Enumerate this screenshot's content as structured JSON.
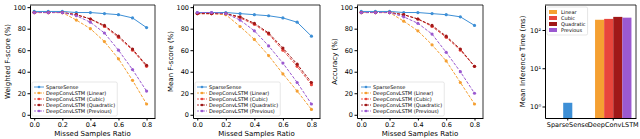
{
  "chart_data": [
    {
      "type": "line",
      "y_label": "Weighted F-score (%)",
      "x_label": "Missed Samples Ratio",
      "x": [
        0,
        0.1,
        0.2,
        0.3,
        0.4,
        0.5,
        0.6,
        0.7,
        0.8
      ],
      "xlim": [
        -0.03,
        0.86
      ],
      "xticks": [
        {
          "value": 0,
          "label": "0.0"
        },
        0.2,
        0.4,
        0.6,
        0.8
      ],
      "ylim": [
        -3,
        102
      ],
      "yticks": [
        0,
        20,
        40,
        60,
        80,
        100
      ],
      "legend": "lower left",
      "series": [
        {
          "name": "SparseSense",
          "color": "#3d8fd6",
          "marker": "circle",
          "line_style": "solid",
          "values": [
            96,
            96,
            96,
            95,
            95,
            94,
            93,
            90,
            81
          ]
        },
        {
          "name": "DeepConvLSTM (Linear)",
          "color": "#f5a032",
          "marker": "circle",
          "line_style": "dashed",
          "values": [
            95,
            95,
            95,
            88,
            80,
            68,
            52,
            32,
            10
          ]
        },
        {
          "name": "DeepConvLSTM (Cubic)",
          "color": "#e8453c",
          "marker": "circle",
          "line_style": "dashed",
          "values": [
            95,
            95,
            95,
            93,
            89,
            82,
            72,
            60,
            45
          ]
        },
        {
          "name": "DeepConvLSTM (Quadratic)",
          "color": "#a01818",
          "marker": "circle",
          "line_style": "dashed",
          "values": [
            95,
            95,
            95,
            93,
            89,
            83,
            73,
            61,
            46
          ]
        },
        {
          "name": "DeepConvLSTM (Previous)",
          "color": "#9b59d0",
          "marker": "circle",
          "line_style": "dashed",
          "values": [
            95,
            95,
            95,
            92,
            86,
            76,
            60,
            42,
            22
          ]
        }
      ]
    },
    {
      "type": "line",
      "y_label": "Mean F-score (%)",
      "x_label": "Missed Samples Ratio",
      "x": [
        0,
        0.1,
        0.2,
        0.3,
        0.4,
        0.5,
        0.6,
        0.7,
        0.8
      ],
      "xlim": [
        -0.03,
        0.86
      ],
      "xticks": [
        {
          "value": 0,
          "label": "0.0"
        },
        0.2,
        0.4,
        0.6,
        0.8
      ],
      "ylim": [
        -3,
        102
      ],
      "yticks": [
        0,
        20,
        40,
        60,
        80,
        100
      ],
      "legend": "lower left",
      "series": [
        {
          "name": "SparseSense",
          "color": "#3d8fd6",
          "marker": "circle",
          "line_style": "solid",
          "values": [
            95,
            95,
            95,
            94,
            93,
            92,
            90,
            86,
            73
          ]
        },
        {
          "name": "DeepConvLSTM (Linear)",
          "color": "#f5a032",
          "marker": "circle",
          "line_style": "dashed",
          "values": [
            94,
            94,
            93,
            82,
            70,
            55,
            38,
            22,
            5
          ]
        },
        {
          "name": "DeepConvLSTM (Cubic)",
          "color": "#e8453c",
          "marker": "circle",
          "line_style": "dashed",
          "values": [
            94,
            94,
            94,
            90,
            84,
            75,
            60,
            45,
            28
          ]
        },
        {
          "name": "DeepConvLSTM (Quadratic)",
          "color": "#a01818",
          "marker": "circle",
          "line_style": "dashed",
          "values": [
            94,
            94,
            94,
            91,
            85,
            76,
            62,
            47,
            30
          ]
        },
        {
          "name": "DeepConvLSTM (Previous)",
          "color": "#9b59d0",
          "marker": "circle",
          "line_style": "dashed",
          "values": [
            95,
            95,
            94,
            88,
            78,
            64,
            48,
            30,
            10
          ]
        }
      ]
    },
    {
      "type": "line",
      "y_label": "Accuracy (%)",
      "x_label": "Missed Samples Ratio",
      "x": [
        0,
        0.1,
        0.2,
        0.3,
        0.4,
        0.5,
        0.6,
        0.7,
        0.8
      ],
      "xlim": [
        -0.03,
        0.86
      ],
      "xticks": [
        {
          "value": 0,
          "label": "0.0"
        },
        0.2,
        0.4,
        0.6,
        0.8
      ],
      "ylim": [
        -3,
        102
      ],
      "yticks": [
        0,
        20,
        40,
        60,
        80,
        100
      ],
      "legend": "lower left",
      "series": [
        {
          "name": "SparseSense",
          "color": "#3d8fd6",
          "marker": "circle",
          "line_style": "solid",
          "values": [
            96,
            96,
            96,
            95,
            95,
            94,
            93,
            91,
            83
          ]
        },
        {
          "name": "DeepConvLSTM (Linear)",
          "color": "#f5a032",
          "marker": "circle",
          "line_style": "dashed",
          "values": [
            95,
            95,
            95,
            87,
            78,
            65,
            50,
            30,
            10
          ]
        },
        {
          "name": "DeepConvLSTM (Cubic)",
          "color": "#e8453c",
          "marker": "circle",
          "line_style": "dashed",
          "values": [
            95,
            95,
            95,
            93,
            89,
            82,
            72,
            60,
            45
          ]
        },
        {
          "name": "DeepConvLSTM (Quadratic)",
          "color": "#a01818",
          "marker": "circle",
          "line_style": "dashed",
          "values": [
            95,
            95,
            95,
            93,
            89,
            83,
            73,
            61,
            45
          ]
        },
        {
          "name": "DeepConvLSTM (Previous)",
          "color": "#9b59d0",
          "marker": "circle",
          "line_style": "dashed",
          "values": [
            95,
            95,
            95,
            91,
            85,
            75,
            58,
            40,
            20
          ]
        }
      ]
    },
    {
      "type": "bar",
      "y_label": "Mean Inference Time (ms)",
      "categories": [
        "SparseSense",
        "DeepConvLSTM"
      ],
      "log": "y",
      "ylim": [
        0.5,
        450
      ],
      "yticks": [
        {
          "value": 1,
          "label": "10⁰"
        },
        {
          "value": 10,
          "label": "10¹"
        },
        {
          "value": 100,
          "label": "10²"
        }
      ],
      "legend": "upper left",
      "series": [
        {
          "name": "SparseSense",
          "color": "#3d8fd6",
          "values": [
            1.25,
            null
          ]
        },
        {
          "name": "Linear",
          "color": "#f5a032",
          "values": [
            null,
            185
          ]
        },
        {
          "name": "Cubic",
          "color": "#e8453c",
          "values": [
            null,
            195
          ]
        },
        {
          "name": "Quadratic",
          "color": "#a01818",
          "values": [
            null,
            220
          ]
        },
        {
          "name": "Previous",
          "color": "#9b59d0",
          "values": [
            null,
            210
          ]
        }
      ]
    }
  ]
}
